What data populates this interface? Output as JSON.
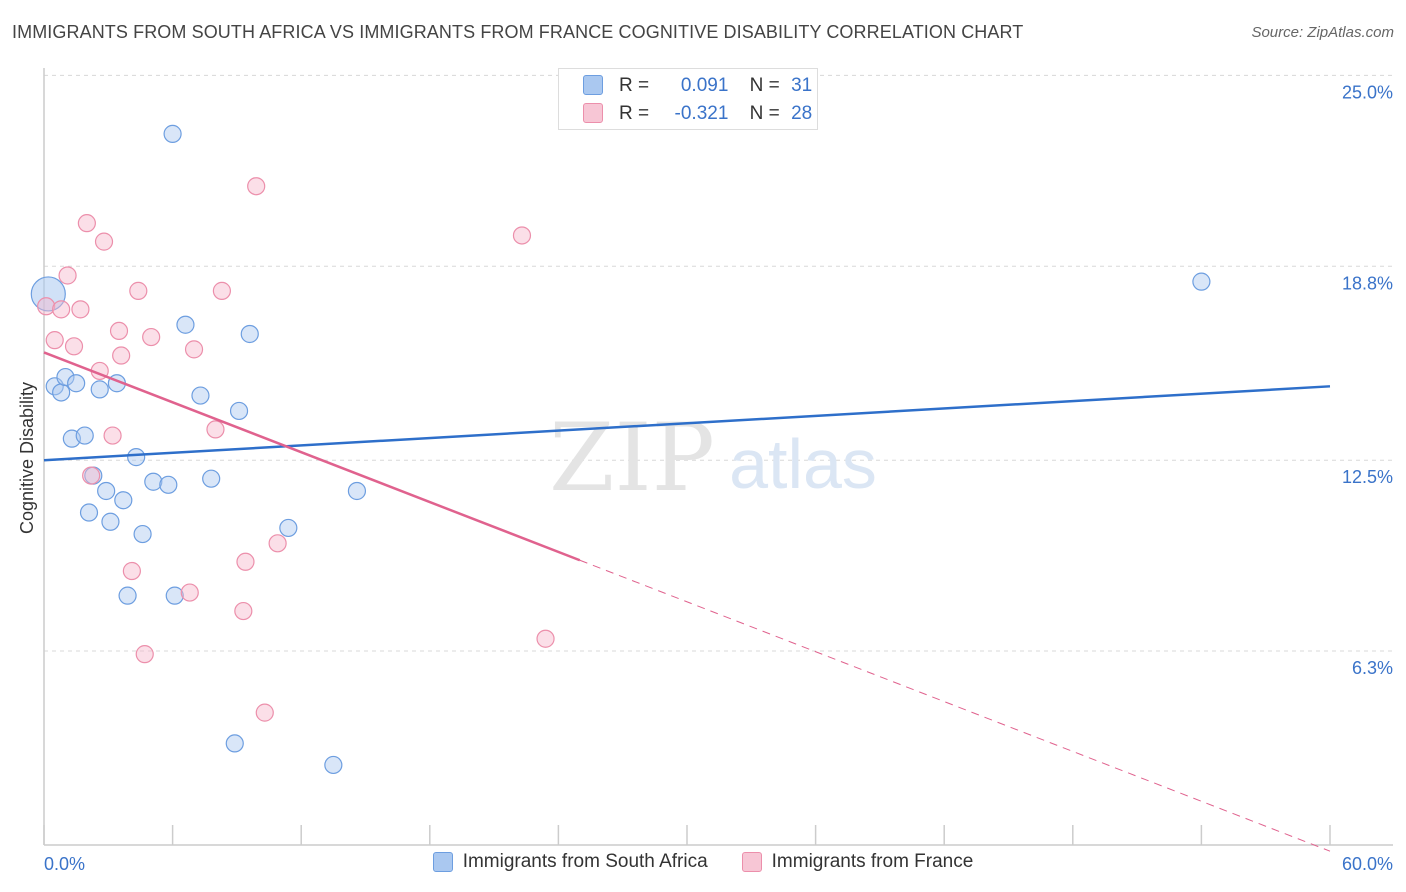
{
  "header": {
    "title": "IMMIGRANTS FROM SOUTH AFRICA VS IMMIGRANTS FROM FRANCE COGNITIVE DISABILITY CORRELATION CHART",
    "source": "Source: ZipAtlas.com"
  },
  "watermark": {
    "zip": "ZIP",
    "atlas": "atlas"
  },
  "stats": {
    "r_label": "R =",
    "n_label": "N =",
    "south_africa": {
      "r": "0.091",
      "n": "31"
    },
    "france": {
      "r": "-0.321",
      "n": "28"
    }
  },
  "colors": {
    "south_africa_fill": "#aac8f0",
    "south_africa_edge": "#6d9ee0",
    "south_africa_line": "#2e6fca",
    "france_fill": "#f7b9cc",
    "france_edge": "#ec8fab",
    "france_line": "#e0628e",
    "tick_label": "#3a73c9",
    "grid": "#d8d8d8"
  },
  "chart_data": {
    "type": "scatter",
    "title": "IMMIGRANTS FROM SOUTH AFRICA VS IMMIGRANTS FROM FRANCE COGNITIVE DISABILITY CORRELATION CHART",
    "xlabel": "",
    "ylabel": "Cognitive Disability",
    "xlim": [
      0,
      60
    ],
    "ylim": [
      0,
      25.5
    ],
    "x_tick_labels": [
      "0.0%",
      "60.0%"
    ],
    "y_ticks": [
      {
        "value": 6.3,
        "label": "6.3%"
      },
      {
        "value": 12.5,
        "label": "12.5%"
      },
      {
        "value": 18.8,
        "label": "18.8%"
      },
      {
        "value": 25.0,
        "label": "25.0%"
      }
    ],
    "grid": "horizontal-dashed",
    "legend_placement": "bottom-center",
    "series": [
      {
        "name": "Immigrants from South Africa",
        "color": "#6d9ee0",
        "trend": {
          "x": [
            0,
            60
          ],
          "y": [
            12.5,
            14.9
          ],
          "dashed_from_x": null
        },
        "points": [
          {
            "x": 0.2,
            "y": 17.9
          },
          {
            "x": 0.5,
            "y": 14.9
          },
          {
            "x": 0.8,
            "y": 14.7
          },
          {
            "x": 1.0,
            "y": 15.2
          },
          {
            "x": 1.3,
            "y": 13.2
          },
          {
            "x": 1.5,
            "y": 15.0
          },
          {
            "x": 1.9,
            "y": 13.3
          },
          {
            "x": 2.1,
            "y": 10.8
          },
          {
            "x": 2.3,
            "y": 12.0
          },
          {
            "x": 2.6,
            "y": 14.8
          },
          {
            "x": 2.9,
            "y": 11.5
          },
          {
            "x": 3.1,
            "y": 10.5
          },
          {
            "x": 3.4,
            "y": 15.0
          },
          {
            "x": 3.7,
            "y": 11.2
          },
          {
            "x": 3.9,
            "y": 8.1
          },
          {
            "x": 4.3,
            "y": 12.6
          },
          {
            "x": 4.6,
            "y": 10.1
          },
          {
            "x": 5.1,
            "y": 11.8
          },
          {
            "x": 5.8,
            "y": 11.7
          },
          {
            "x": 6.0,
            "y": 23.1
          },
          {
            "x": 6.1,
            "y": 8.1
          },
          {
            "x": 6.6,
            "y": 16.9
          },
          {
            "x": 7.3,
            "y": 14.6
          },
          {
            "x": 7.8,
            "y": 11.9
          },
          {
            "x": 8.9,
            "y": 3.3
          },
          {
            "x": 9.1,
            "y": 14.1
          },
          {
            "x": 9.6,
            "y": 16.6
          },
          {
            "x": 11.4,
            "y": 10.3
          },
          {
            "x": 13.5,
            "y": 2.6
          },
          {
            "x": 14.6,
            "y": 11.5
          },
          {
            "x": 54.0,
            "y": 18.3
          }
        ]
      },
      {
        "name": "Immigrants from France",
        "color": "#ec8fab",
        "trend": {
          "x": [
            0,
            60
          ],
          "y": [
            16.0,
            -0.2
          ],
          "dashed_from_x": 25.0
        },
        "points": [
          {
            "x": 0.1,
            "y": 17.5
          },
          {
            "x": 0.5,
            "y": 16.4
          },
          {
            "x": 0.8,
            "y": 17.4
          },
          {
            "x": 1.1,
            "y": 18.5
          },
          {
            "x": 1.4,
            "y": 16.2
          },
          {
            "x": 1.7,
            "y": 17.4
          },
          {
            "x": 2.0,
            "y": 20.2
          },
          {
            "x": 2.2,
            "y": 12.0
          },
          {
            "x": 2.6,
            "y": 15.4
          },
          {
            "x": 2.8,
            "y": 19.6
          },
          {
            "x": 3.2,
            "y": 13.3
          },
          {
            "x": 3.5,
            "y": 16.7
          },
          {
            "x": 3.6,
            "y": 15.9
          },
          {
            "x": 4.1,
            "y": 8.9
          },
          {
            "x": 4.4,
            "y": 18.0
          },
          {
            "x": 4.7,
            "y": 6.2
          },
          {
            "x": 5.0,
            "y": 16.5
          },
          {
            "x": 6.8,
            "y": 8.2
          },
          {
            "x": 7.0,
            "y": 16.1
          },
          {
            "x": 8.0,
            "y": 13.5
          },
          {
            "x": 8.3,
            "y": 18.0
          },
          {
            "x": 9.3,
            "y": 7.6
          },
          {
            "x": 9.4,
            "y": 9.2
          },
          {
            "x": 9.9,
            "y": 21.4
          },
          {
            "x": 10.3,
            "y": 4.3
          },
          {
            "x": 10.9,
            "y": 9.8
          },
          {
            "x": 22.3,
            "y": 19.8
          },
          {
            "x": 23.4,
            "y": 6.7
          }
        ]
      }
    ]
  }
}
